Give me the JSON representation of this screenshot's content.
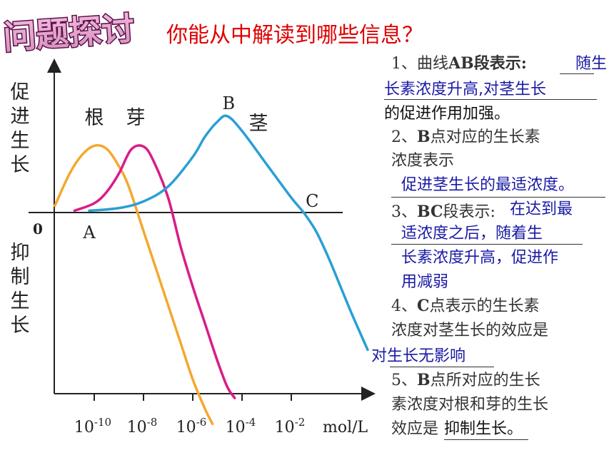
{
  "badge": {
    "title": "问题探讨"
  },
  "heading": {
    "question": "你能从中解读到哪些信息？"
  },
  "chart_data": {
    "type": "line",
    "y_positive_label": "促进生长",
    "y_negative_label": "抑制生长",
    "origin_label": "0",
    "x_ticks": [
      {
        "base": "10",
        "exp": "-10"
      },
      {
        "base": "10",
        "exp": "-8"
      },
      {
        "base": "10",
        "exp": "-6"
      },
      {
        "base": "10",
        "exp": "-4"
      },
      {
        "base": "10",
        "exp": "-2"
      }
    ],
    "x_unit": "mol/L",
    "x_scale": "log",
    "series": [
      {
        "name": "根",
        "color": "#f5a72f",
        "x": [
          -11.6,
          -11.0,
          -10.5,
          -10.0,
          -9.5,
          -9.0,
          -8.6,
          -8.0,
          -7.5,
          -7.0,
          -6.5,
          -6.0,
          -5.5,
          -5.2
        ],
        "y": [
          0.18,
          1.05,
          1.55,
          1.8,
          1.72,
          1.25,
          0.7,
          -0.5,
          -1.5,
          -2.5,
          -3.5,
          -4.5,
          -5.3,
          -5.7
        ]
      },
      {
        "name": "芽",
        "color": "#d91c8a",
        "x": [
          -10.8,
          -10.0,
          -9.5,
          -9.0,
          -8.5,
          -8.0,
          -7.6,
          -7.0,
          -6.5,
          -6.0,
          -5.5,
          -5.0,
          -4.6,
          -4.3
        ],
        "y": [
          0.05,
          0.25,
          0.55,
          1.05,
          1.7,
          1.78,
          1.4,
          0.4,
          -0.9,
          -2.0,
          -3.0,
          -4.0,
          -4.7,
          -5.0
        ]
      },
      {
        "name": "茎",
        "color": "#2a9fd4",
        "x": [
          -10.2,
          -9.0,
          -8.0,
          -7.0,
          -6.0,
          -5.5,
          -5.0,
          -4.6,
          -4.0,
          -3.0,
          -2.0,
          -1.5,
          -1.0,
          -0.5,
          0.0,
          0.5,
          1.1
        ],
        "y": [
          0.05,
          0.12,
          0.3,
          0.7,
          1.5,
          2.05,
          2.45,
          2.6,
          2.2,
          1.3,
          0.4,
          0.0,
          -0.5,
          -1.2,
          -2.0,
          -2.8,
          -3.7
        ]
      }
    ],
    "points": [
      {
        "label": "A",
        "x": -10.2,
        "y": 0.0
      },
      {
        "label": "B",
        "x": -4.6,
        "y": 2.6
      },
      {
        "label": "C",
        "x": -1.5,
        "y": 0.0
      }
    ]
  },
  "qa": {
    "q1_num": "1、",
    "q1_text": "曲线",
    "q1_bold": "AB",
    "q1_tail": "段表示:",
    "q1_ans_part1": "随生",
    "q1_ans_part2": "长素浓度升高,对茎生长",
    "q1_ans_part3": "的促进作用加强。",
    "q2_num": "2、",
    "q2_bold": "B",
    "q2_text1": "点对应的生长素",
    "q2_text2": "浓度表示",
    "q2_ans": "促进茎生长的最适浓度。",
    "q3_num": "3、",
    "q3_bold": "BC",
    "q3_text": "段表示:",
    "q3_ans1": "在达到最",
    "q3_ans2": "适浓度之后，随着生",
    "q3_ans3": "长素浓度升高，促进作",
    "q3_ans4": "用减弱",
    "q4_num": "4、",
    "q4_bold": "C",
    "q4_text1": "点表示的生长素",
    "q4_text2": "浓度对茎生长的效应是",
    "q4_ans": "对生长无影响",
    "q5_num": "5、",
    "q5_bold": "B",
    "q5_text1": "点所对应的生长",
    "q5_text2": "素浓度对根和芽的生长",
    "q5_text3": "效应是",
    "q5_ans": "抑制生长。"
  }
}
